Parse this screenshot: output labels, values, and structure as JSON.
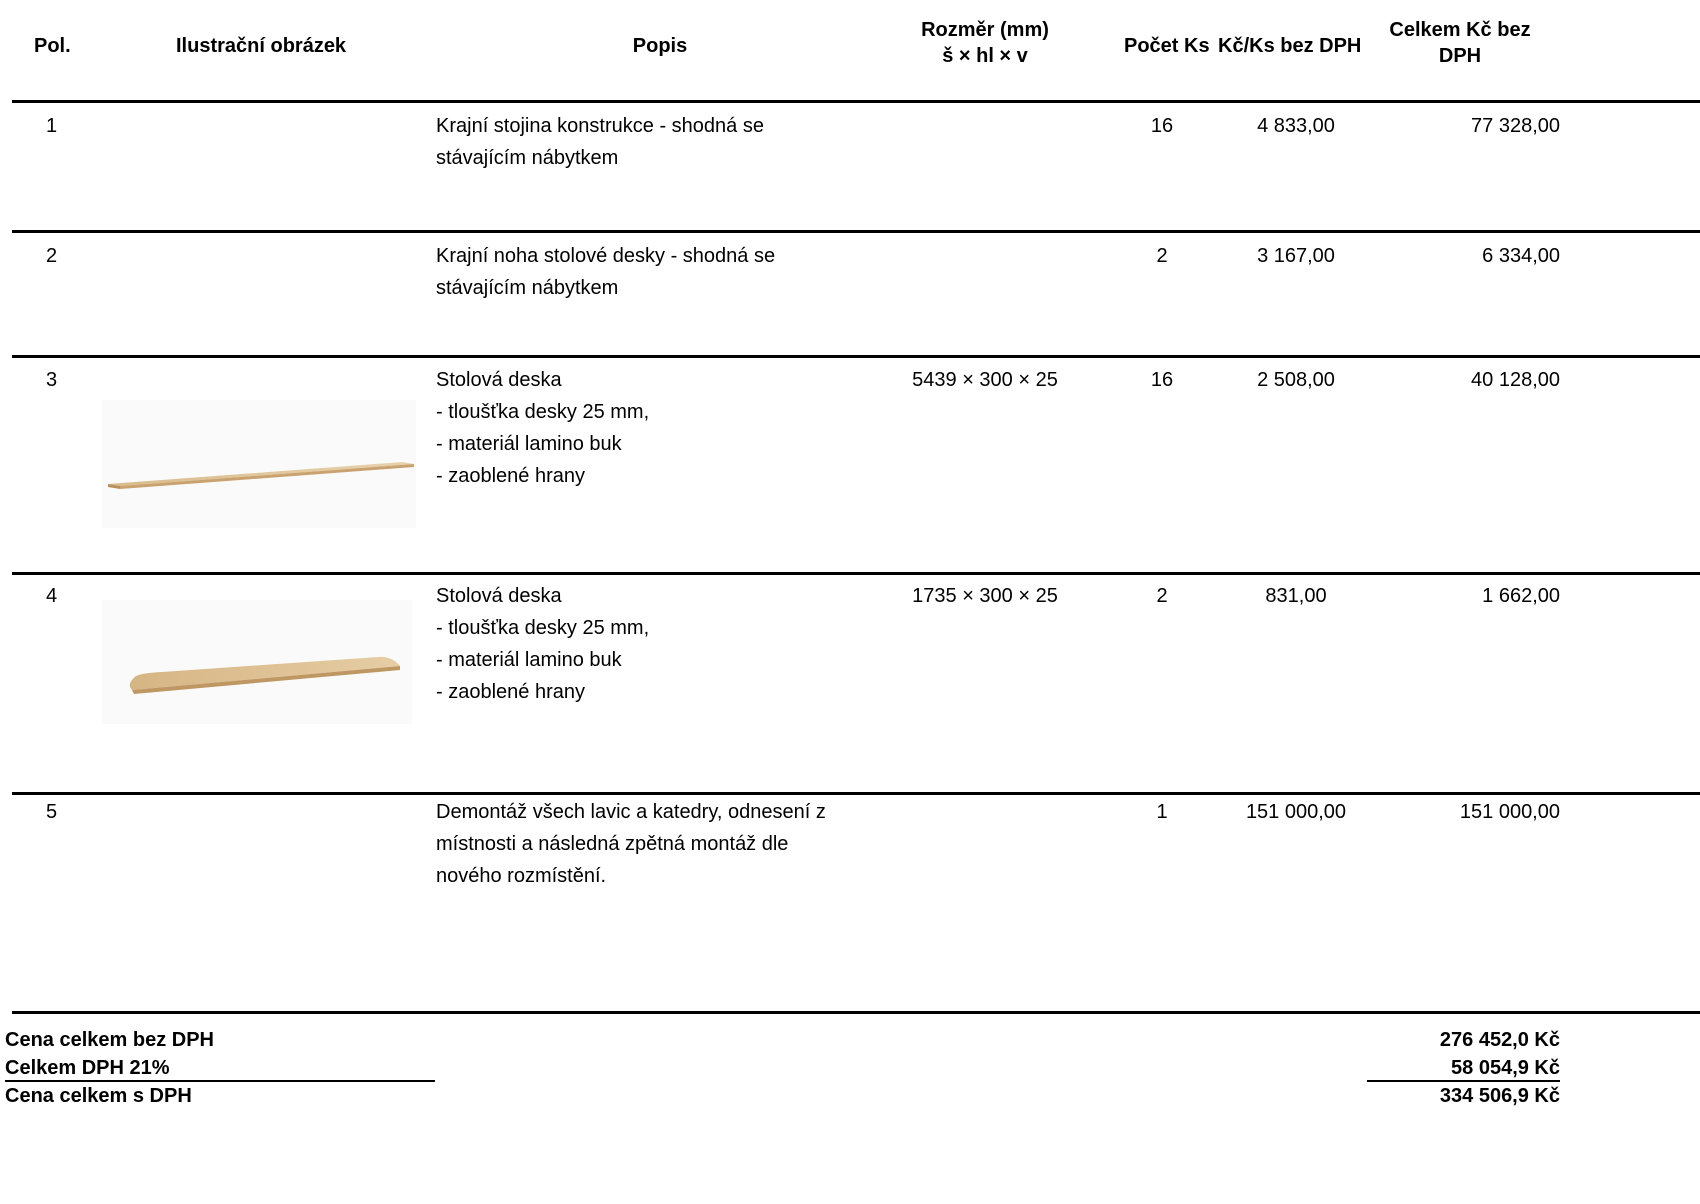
{
  "header": {
    "pol": "Pol.",
    "image": "Ilustrační obrázek",
    "popis": "Popis",
    "rozmer_line1": "Rozměr (mm)",
    "rozmer_line2": "š × hl × v",
    "pocet": "Počet Ks",
    "unit_price": "Kč/Ks bez DPH",
    "total_line1": "Celkem Kč bez",
    "total_line2": "DPH"
  },
  "rows": [
    {
      "pol": "1",
      "desc": "Krajní stojina konstrukce - shodná se\nstávajícím nábytkem",
      "dims": "",
      "qty": "16",
      "unit": "4 833,00",
      "total": "77 328,00",
      "image": ""
    },
    {
      "pol": "2",
      "desc": "Krajní noha stolové desky - shodná se\nstávajícím nábytkem",
      "dims": "",
      "qty": "2",
      "unit": "3 167,00",
      "total": "6 334,00",
      "image": ""
    },
    {
      "pol": "3",
      "desc": "Stolová deska\n- tloušťka desky 25 mm,\n- materiál lamino buk\n- zaoblené hrany",
      "dims": "5439 × 300 × 25",
      "qty": "16",
      "unit": "2 508,00",
      "total": "40 128,00",
      "image": "long-beech-desk-board"
    },
    {
      "pol": "4",
      "desc": "Stolová deska\n- tloušťka desky 25 mm,\n- materiál lamino buk\n- zaoblené hrany",
      "dims": "1735 × 300 × 25",
      "qty": "2",
      "unit": "831,00",
      "total": "1 662,00",
      "image": "short-beech-desk-board"
    },
    {
      "pol": "5",
      "desc": "Demontáž všech lavic a katedry, odnesení z\nmístnosti a následná zpětná montáž dle\nnového rozmístění.",
      "dims": "",
      "qty": "1",
      "unit": "151 000,00",
      "total": "151 000,00",
      "image": ""
    }
  ],
  "totals": {
    "net_label": "Cena celkem bez DPH",
    "net_value": "276 452,0 Kč",
    "vat_label": "Celkem DPH 21%",
    "vat_value": "58 054,9 Kč",
    "gross_label": "Cena celkem s DPH",
    "gross_value": "334 506,9 Kč"
  },
  "colors": {
    "wood_light": "#e2c9a0",
    "wood_mid": "#d4b283",
    "wood_edge": "#b8905e"
  }
}
